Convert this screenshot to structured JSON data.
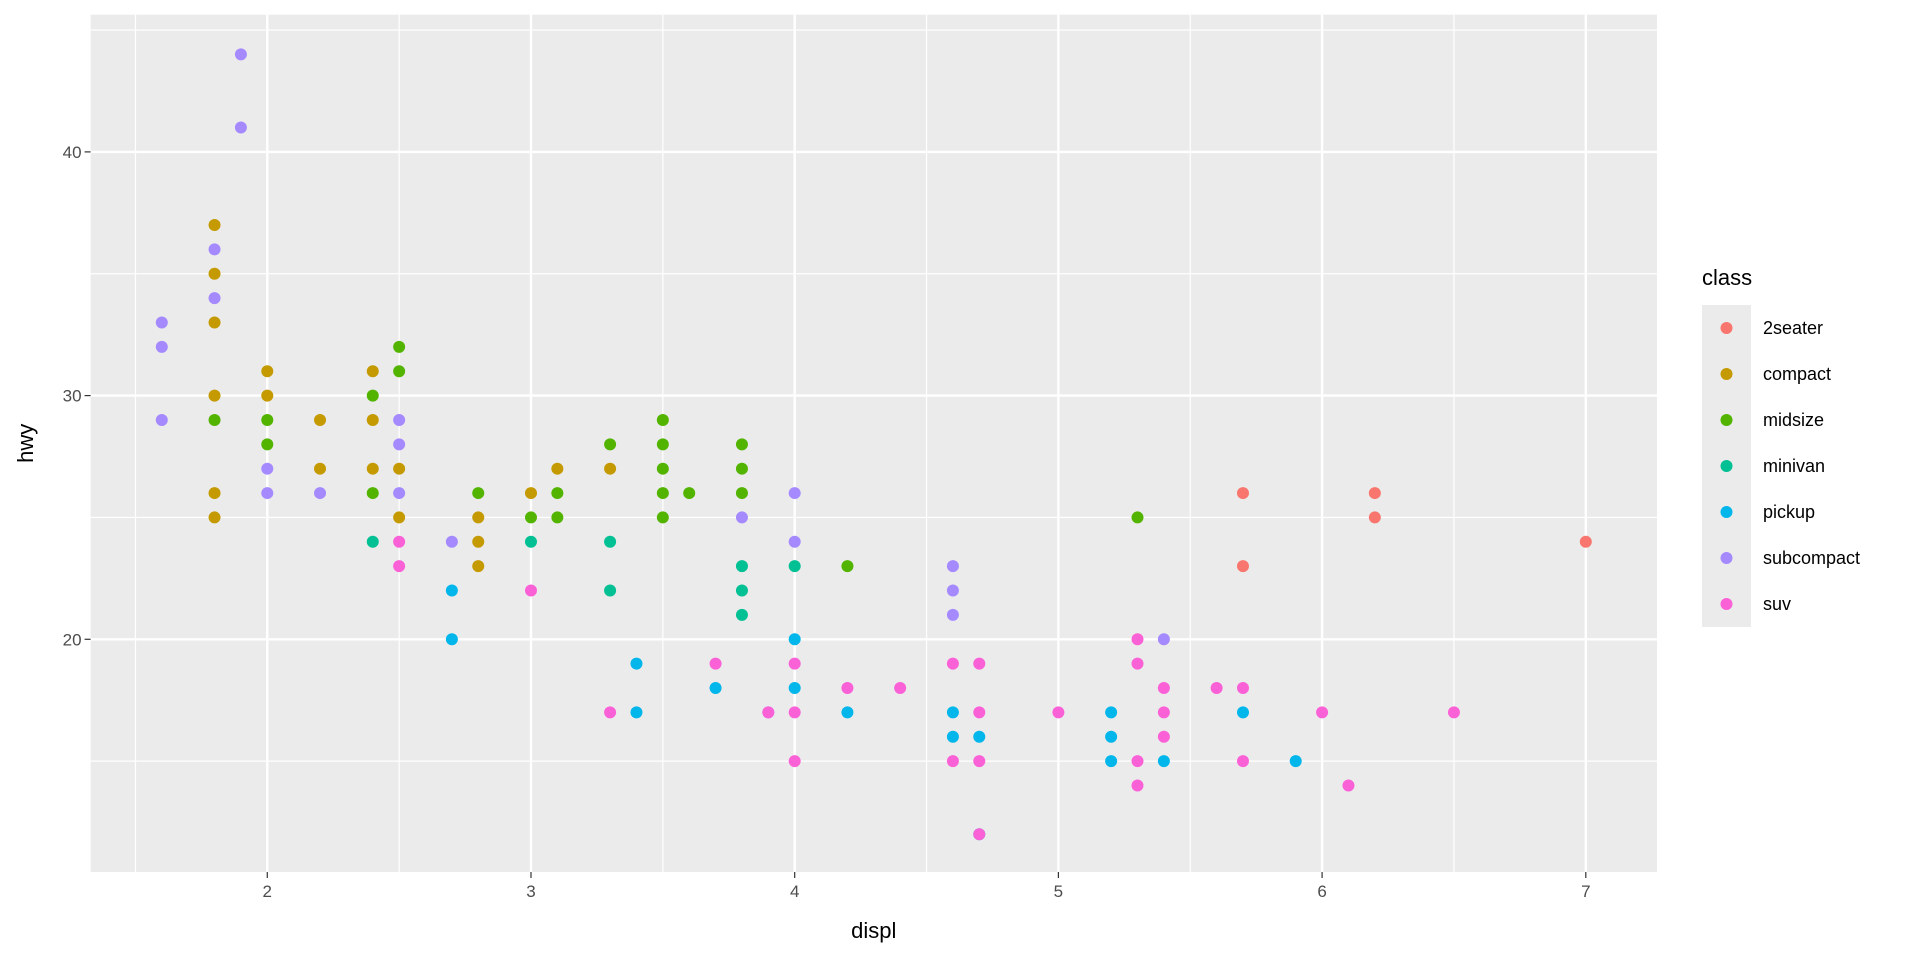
{
  "chart_data": {
    "type": "scatter",
    "xlabel": "displ",
    "ylabel": "hwy",
    "xlim": [
      1.33,
      7.27
    ],
    "ylim": [
      10.45,
      45.63
    ],
    "x_ticks": [
      2,
      3,
      4,
      5,
      6,
      7
    ],
    "y_ticks": [
      20,
      30,
      40
    ],
    "grid": true,
    "legend": {
      "title": "class",
      "placement": "right"
    },
    "series": [
      {
        "name": "2seater",
        "color": "#F8766D",
        "points": [
          [
            5.7,
            26
          ],
          [
            5.7,
            23
          ],
          [
            6.2,
            26
          ],
          [
            6.2,
            25
          ],
          [
            7.0,
            24
          ]
        ]
      },
      {
        "name": "compact",
        "color": "#C49A00",
        "points": [
          [
            1.8,
            37
          ],
          [
            1.8,
            35
          ],
          [
            1.8,
            33
          ],
          [
            1.8,
            30
          ],
          [
            1.8,
            26
          ],
          [
            1.8,
            25
          ],
          [
            2.0,
            31
          ],
          [
            2.0,
            30
          ],
          [
            2.2,
            29
          ],
          [
            2.2,
            27
          ],
          [
            2.4,
            31
          ],
          [
            2.4,
            29
          ],
          [
            2.4,
            27
          ],
          [
            2.5,
            27
          ],
          [
            2.5,
            25
          ],
          [
            2.8,
            25
          ],
          [
            2.8,
            24
          ],
          [
            2.8,
            23
          ],
          [
            3.0,
            26
          ],
          [
            3.1,
            27
          ],
          [
            3.3,
            27
          ]
        ]
      },
      {
        "name": "midsize",
        "color": "#53B400",
        "points": [
          [
            1.8,
            29
          ],
          [
            2.0,
            29
          ],
          [
            2.0,
            28
          ],
          [
            2.4,
            30
          ],
          [
            2.4,
            26
          ],
          [
            2.5,
            32
          ],
          [
            2.5,
            31
          ],
          [
            2.8,
            26
          ],
          [
            3.0,
            25
          ],
          [
            3.1,
            26
          ],
          [
            3.1,
            25
          ],
          [
            3.3,
            28
          ],
          [
            3.5,
            29
          ],
          [
            3.5,
            28
          ],
          [
            3.5,
            27
          ],
          [
            3.5,
            26
          ],
          [
            3.5,
            25
          ],
          [
            3.6,
            26
          ],
          [
            3.8,
            28
          ],
          [
            3.8,
            27
          ],
          [
            3.8,
            26
          ],
          [
            4.2,
            23
          ],
          [
            5.3,
            25
          ]
        ]
      },
      {
        "name": "minivan",
        "color": "#00C094",
        "points": [
          [
            2.4,
            24
          ],
          [
            3.0,
            24
          ],
          [
            3.3,
            24
          ],
          [
            3.3,
            22
          ],
          [
            3.8,
            23
          ],
          [
            3.8,
            22
          ],
          [
            3.8,
            21
          ],
          [
            4.0,
            23
          ]
        ]
      },
      {
        "name": "pickup",
        "color": "#00B6EB",
        "points": [
          [
            2.7,
            22
          ],
          [
            2.7,
            20
          ],
          [
            3.4,
            19
          ],
          [
            3.4,
            17
          ],
          [
            3.7,
            18
          ],
          [
            4.0,
            20
          ],
          [
            4.0,
            18
          ],
          [
            4.2,
            17
          ],
          [
            4.6,
            17
          ],
          [
            4.6,
            16
          ],
          [
            4.7,
            16
          ],
          [
            4.7,
            12
          ],
          [
            5.2,
            17
          ],
          [
            5.2,
            16
          ],
          [
            5.2,
            15
          ],
          [
            5.4,
            15
          ],
          [
            5.7,
            17
          ],
          [
            5.9,
            15
          ]
        ]
      },
      {
        "name": "subcompact",
        "color": "#A58AFF",
        "points": [
          [
            1.6,
            33
          ],
          [
            1.6,
            32
          ],
          [
            1.6,
            29
          ],
          [
            1.8,
            36
          ],
          [
            1.8,
            34
          ],
          [
            1.9,
            44
          ],
          [
            1.9,
            41
          ],
          [
            2.0,
            27
          ],
          [
            2.0,
            26
          ],
          [
            2.2,
            26
          ],
          [
            2.5,
            29
          ],
          [
            2.5,
            28
          ],
          [
            2.5,
            26
          ],
          [
            2.7,
            24
          ],
          [
            3.8,
            25
          ],
          [
            3.9,
            17
          ],
          [
            4.0,
            26
          ],
          [
            4.0,
            24
          ],
          [
            4.6,
            23
          ],
          [
            4.6,
            22
          ],
          [
            4.6,
            21
          ],
          [
            5.4,
            20
          ]
        ]
      },
      {
        "name": "suv",
        "color": "#FB61D7",
        "points": [
          [
            2.5,
            24
          ],
          [
            2.5,
            23
          ],
          [
            3.0,
            22
          ],
          [
            3.3,
            17
          ],
          [
            3.7,
            19
          ],
          [
            3.9,
            17
          ],
          [
            4.0,
            19
          ],
          [
            4.0,
            17
          ],
          [
            4.0,
            15
          ],
          [
            4.2,
            18
          ],
          [
            4.4,
            18
          ],
          [
            4.6,
            19
          ],
          [
            4.6,
            15
          ],
          [
            4.7,
            19
          ],
          [
            4.7,
            17
          ],
          [
            4.7,
            15
          ],
          [
            4.7,
            12
          ],
          [
            5.0,
            17
          ],
          [
            5.3,
            20
          ],
          [
            5.3,
            19
          ],
          [
            5.3,
            15
          ],
          [
            5.3,
            14
          ],
          [
            5.4,
            18
          ],
          [
            5.4,
            17
          ],
          [
            5.4,
            16
          ],
          [
            5.6,
            18
          ],
          [
            5.7,
            18
          ],
          [
            5.7,
            15
          ],
          [
            6.0,
            17
          ],
          [
            6.1,
            14
          ],
          [
            6.5,
            17
          ]
        ]
      }
    ]
  }
}
